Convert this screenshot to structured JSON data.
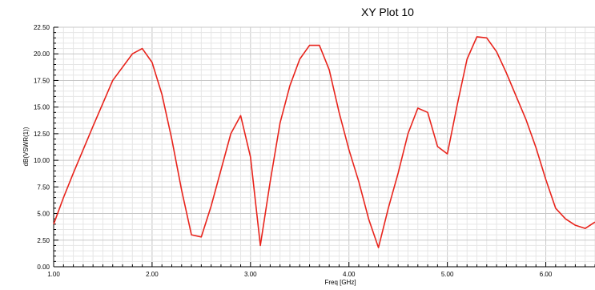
{
  "chart_data": {
    "type": "line",
    "title": "XY Plot 10",
    "xlabel": "Freq [GHz]",
    "ylabel": "dB(VSWR(1))",
    "xlim": [
      1.0,
      6.5
    ],
    "ylim": [
      0.0,
      22.5
    ],
    "x_tick_labels": [
      "1.00",
      "2.00",
      "3.00",
      "4.00",
      "5.00",
      "6.00"
    ],
    "y_tick_labels": [
      "0.00",
      "2.50",
      "5.00",
      "7.50",
      "10.00",
      "12.50",
      "15.00",
      "17.50",
      "20.00",
      "22.50"
    ],
    "grid": true,
    "line_color": "#e8241c",
    "series": [
      {
        "x": [
          1.0,
          1.1,
          1.2,
          1.4,
          1.6,
          1.8,
          1.9,
          2.0,
          2.1,
          2.2,
          2.3,
          2.4,
          2.5,
          2.6,
          2.8,
          2.9,
          3.0,
          3.1,
          3.2,
          3.3,
          3.4,
          3.5,
          3.6,
          3.7,
          3.8,
          3.9,
          4.0,
          4.1,
          4.2,
          4.3,
          4.4,
          4.5,
          4.6,
          4.7,
          4.8,
          4.9,
          5.0,
          5.1,
          5.2,
          5.3,
          5.4,
          5.5,
          5.6,
          5.7,
          5.8,
          5.9,
          6.0,
          6.1,
          6.2,
          6.3,
          6.4,
          6.45,
          6.5
        ],
        "y": [
          4.0,
          6.5,
          8.8,
          13.2,
          17.5,
          20.0,
          20.5,
          19.2,
          16.2,
          12.0,
          7.2,
          3.0,
          2.8,
          5.7,
          12.5,
          14.2,
          10.3,
          2.0,
          8.0,
          13.5,
          17.0,
          19.5,
          20.8,
          20.8,
          18.5,
          14.5,
          11.0,
          8.0,
          4.5,
          1.8,
          5.5,
          8.8,
          12.5,
          14.9,
          14.5,
          11.3,
          10.6,
          15.2,
          19.5,
          21.6,
          21.5,
          20.2,
          18.2,
          16.0,
          13.8,
          11.2,
          8.2,
          5.5,
          4.5,
          3.9,
          3.6,
          3.9,
          4.2
        ]
      }
    ]
  }
}
